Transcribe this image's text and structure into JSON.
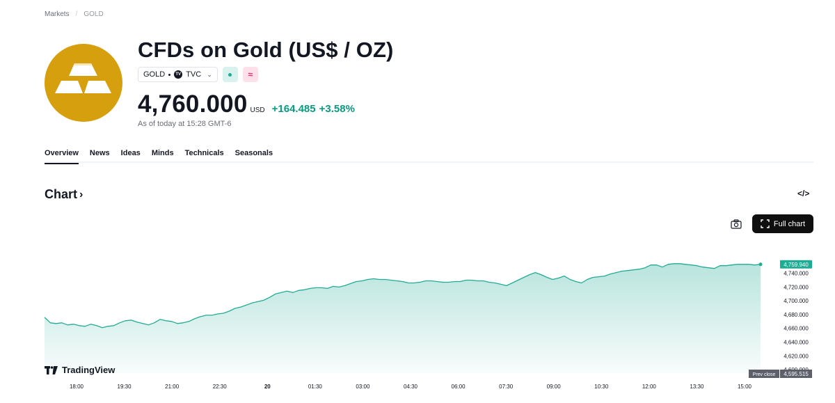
{
  "breadcrumb": {
    "root": "Markets",
    "current": "GOLD"
  },
  "header": {
    "title": "CFDs on Gold (US$ / OZ)",
    "symbol": "GOLD",
    "exchange": "TVC",
    "price": "4,760.000",
    "currency": "USD",
    "change": "+164.485",
    "change_pct": "+3.58%",
    "as_of": "As of today at 15:28 GMT-6"
  },
  "badges": {
    "market_status": "dot",
    "derived": "≈"
  },
  "tabs": [
    "Overview",
    "News",
    "Ideas",
    "Minds",
    "Technicals",
    "Seasonals"
  ],
  "active_tab": "Overview",
  "chart_section": {
    "title": "Chart",
    "full_chart_label": "Full chart"
  },
  "watermark": "TradingView",
  "colors": {
    "up": "#089981",
    "line": "#22ab94",
    "logo_gold": "#d59f0d",
    "button_dark": "#0f0f0f"
  },
  "chart_data": {
    "type": "area",
    "x_ticks": [
      "18:00",
      "19:30",
      "21:00",
      "22:30",
      "20",
      "01:30",
      "03:00",
      "04:30",
      "06:00",
      "07:30",
      "09:00",
      "10:30",
      "12:00",
      "13:30",
      "15:00"
    ],
    "y_ticks": [
      "4,740.000",
      "4,720.000",
      "4,700.000",
      "4,680.000",
      "4,660.000",
      "4,640.000",
      "4,620.000",
      "4,600.000"
    ],
    "ylim": [
      4595,
      4775
    ],
    "last_price_label": "4,759.940",
    "prev_close_label": "Prev close",
    "prev_close_value": "4,595.515",
    "series": [
      {
        "values": [
          4676,
          4668,
          4667,
          4668,
          4665,
          4666,
          4664,
          4663,
          4666,
          4664,
          4661,
          4663,
          4664,
          4668,
          4671,
          4672,
          4669,
          4667,
          4665,
          4668,
          4673,
          4671,
          4670,
          4667,
          4668,
          4670,
          4674,
          4677,
          4679,
          4679,
          4681,
          4682,
          4685,
          4689,
          4691,
          4694,
          4697,
          4699,
          4701,
          4705,
          4710,
          4712,
          4714,
          4712,
          4715,
          4716,
          4718,
          4719,
          4719,
          4718,
          4721,
          4720,
          4722,
          4725,
          4728,
          4729,
          4731,
          4732,
          4731,
          4731,
          4730,
          4729,
          4728,
          4726,
          4726,
          4727,
          4729,
          4729,
          4728,
          4727,
          4727,
          4728,
          4728,
          4730,
          4730,
          4729,
          4729,
          4727,
          4726,
          4724,
          4722,
          4726,
          4730,
          4734,
          4738,
          4741,
          4738,
          4734,
          4731,
          4733,
          4736,
          4731,
          4728,
          4726,
          4731,
          4734,
          4735,
          4736,
          4739,
          4741,
          4743,
          4744,
          4745,
          4746,
          4748,
          4752,
          4752,
          4749,
          4753,
          4754,
          4754,
          4753,
          4752,
          4751,
          4749,
          4748,
          4747,
          4751,
          4751,
          4752,
          4753,
          4753,
          4753,
          4752,
          4753
        ]
      }
    ]
  }
}
